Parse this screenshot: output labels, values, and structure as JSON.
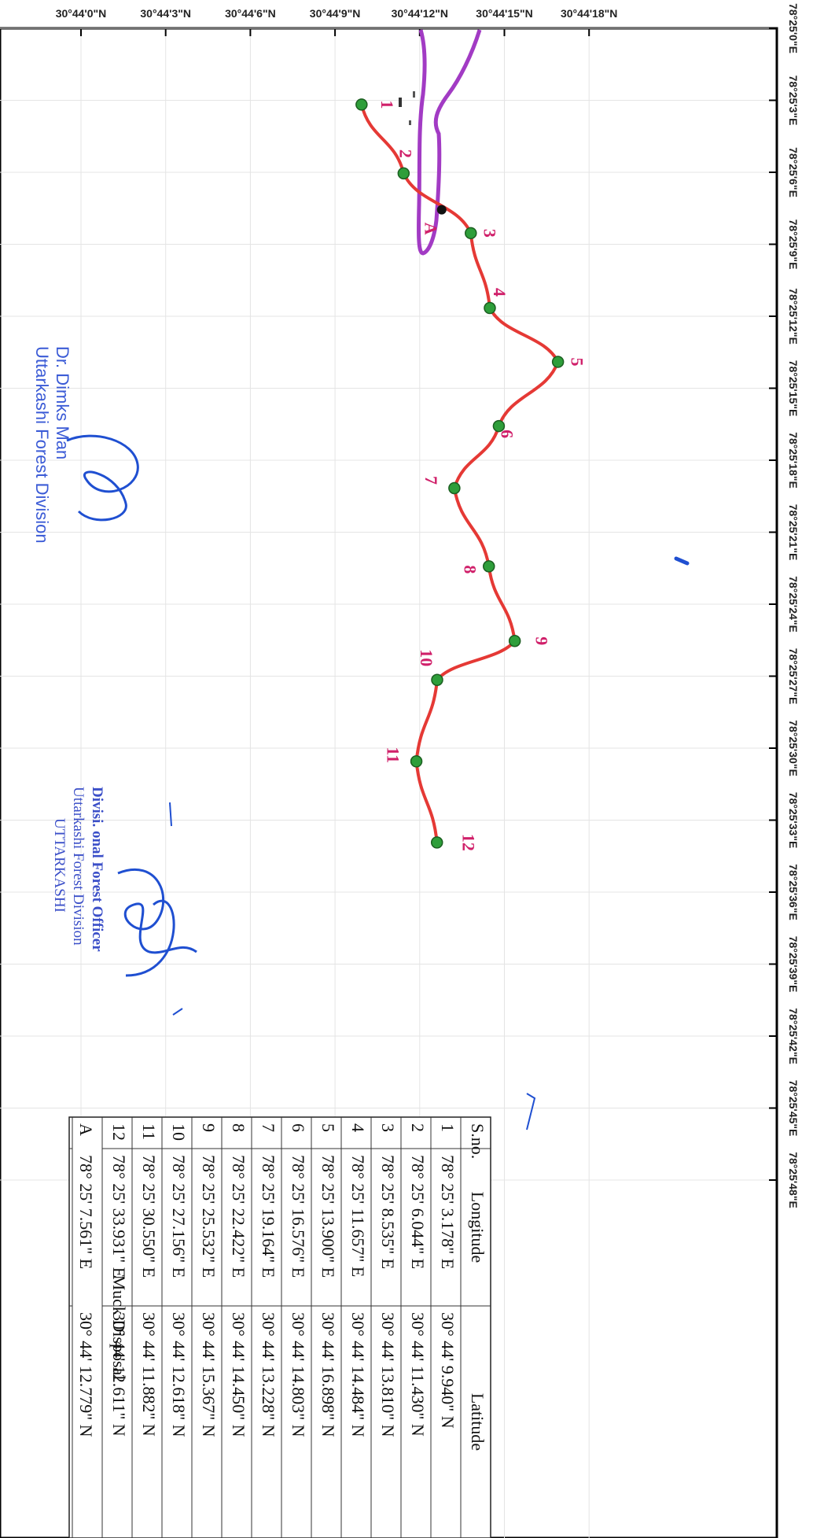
{
  "map": {
    "lat_ticks": [
      "30°44'0\"N",
      "30°44'3\"N",
      "30°44'6\"N",
      "30°44'9\"N",
      "30°44'12\"N",
      "30°44'15\"N",
      "30°44'18\"N"
    ],
    "lon_ticks": [
      "78°25'0\"E",
      "78°25'3\"E",
      "78°25'6\"E",
      "78°25'9\"E",
      "78°25'12\"E",
      "78°25'15\"E",
      "78°25'18\"E",
      "78°25'21\"E",
      "78°25'24\"E",
      "78°25'27\"E",
      "78°25'30\"E",
      "78°25'33\"E",
      "78°25'36\"E",
      "78°25'39\"E",
      "78°25'42\"E",
      "78°25'45\"E",
      "78°25'48\"E"
    ],
    "colors": {
      "route": "#e53935",
      "river": "#a23bc4",
      "point_fill": "#2e9e3a",
      "label": "#d0206a",
      "stamp": "#3b5bd6",
      "ink": "#1f4fd1"
    },
    "points": [
      {
        "label": "1",
        "lon_sec": 3.178,
        "lat_sec": 9.94
      },
      {
        "label": "2",
        "lon_sec": 6.044,
        "lat_sec": 11.43
      },
      {
        "label": "3",
        "lon_sec": 8.535,
        "lat_sec": 13.81
      },
      {
        "label": "4",
        "lon_sec": 11.657,
        "lat_sec": 14.484
      },
      {
        "label": "5",
        "lon_sec": 13.9,
        "lat_sec": 16.898
      },
      {
        "label": "6",
        "lon_sec": 16.576,
        "lat_sec": 14.803
      },
      {
        "label": "7",
        "lon_sec": 19.164,
        "lat_sec": 13.228
      },
      {
        "label": "8",
        "lon_sec": 22.422,
        "lat_sec": 14.45
      },
      {
        "label": "9",
        "lon_sec": 25.532,
        "lat_sec": 15.367
      },
      {
        "label": "10",
        "lon_sec": 27.156,
        "lat_sec": 12.618
      },
      {
        "label": "11",
        "lon_sec": 30.55,
        "lat_sec": 11.882
      },
      {
        "label": "12",
        "lon_sec": 33.931,
        "lat_sec": 12.611
      }
    ],
    "muck_point": {
      "label": "A",
      "lon_sec": 7.561,
      "lat_sec": 12.779
    }
  },
  "table": {
    "headers": [
      "S.no.",
      "Longitude",
      "Latitude"
    ],
    "rows": [
      [
        "1",
        "78° 25' 3.178\" E",
        "30° 44' 9.940\" N"
      ],
      [
        "2",
        "78° 25' 6.044\" E",
        "30° 44' 11.430\" N"
      ],
      [
        "3",
        "78° 25' 8.535\" E",
        "30° 44' 13.810\" N"
      ],
      [
        "4",
        "78° 25' 11.657\" E",
        "30° 44' 14.484\" N"
      ],
      [
        "5",
        "78° 25' 13.900\" E",
        "30° 44' 16.898\" N"
      ],
      [
        "6",
        "78° 25' 16.576\" E",
        "30° 44' 14.803\" N"
      ],
      [
        "7",
        "78° 25' 19.164\" E",
        "30° 44' 13.228\" N"
      ],
      [
        "8",
        "78° 25' 22.422\" E",
        "30° 44' 14.450\" N"
      ],
      [
        "9",
        "78° 25' 25.532\" E",
        "30° 44' 15.367\" N"
      ],
      [
        "10",
        "78° 25' 27.156\" E",
        "30° 44' 12.618\" N"
      ],
      [
        "11",
        "78° 25' 30.550\" E",
        "30° 44' 11.882\" N"
      ],
      [
        "12",
        "78° 25' 33.931\" E",
        "30° 44' 12.611\" N"
      ]
    ],
    "section_title": "Muck Disposal",
    "muck_row": [
      "A",
      "78° 25' 7.561\" E",
      "30° 44' 12.779\" N"
    ]
  },
  "stamps": {
    "officer_name": "Dr. Dimks Man",
    "officer_division": "Uttarkashi Forest Division",
    "office_line1": "Divisi. onal Forest Officer",
    "office_line2": "Uttarkashi Forest Division",
    "office_line3": "UTTARKASHI"
  }
}
